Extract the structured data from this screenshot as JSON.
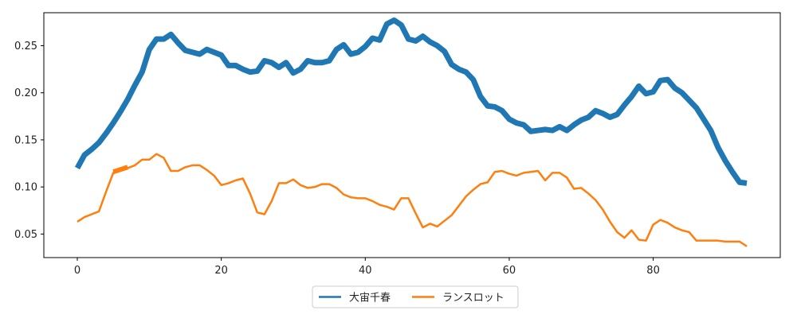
{
  "chart_data": {
    "type": "line",
    "title": "",
    "xlabel": "",
    "ylabel": "",
    "xlim": [
      -4.65,
      97.65
    ],
    "ylim": [
      0.025,
      0.285
    ],
    "xticks": [
      0,
      20,
      40,
      60,
      80
    ],
    "yticks": [
      0.05,
      0.1,
      0.15,
      0.2,
      0.25
    ],
    "ytick_labels": [
      "0.05",
      "0.10",
      "0.15",
      "0.20",
      "0.25"
    ],
    "grid": false,
    "legend": {
      "placement": "bottom-center",
      "columns": 2
    },
    "series": [
      {
        "name": "大宙千春",
        "color": "#1f77b4",
        "x": [
          0,
          1,
          2,
          3,
          4,
          5,
          6,
          7,
          8,
          9,
          10,
          11,
          12,
          13,
          14,
          15,
          16,
          17,
          18,
          19,
          20,
          21,
          22,
          23,
          24,
          25,
          26,
          27,
          28,
          29,
          30,
          31,
          32,
          33,
          34,
          35,
          36,
          37,
          38,
          39,
          40,
          41,
          42,
          43,
          44,
          45,
          46,
          47,
          48,
          49,
          50,
          51,
          52,
          53,
          54,
          55,
          56,
          57,
          58,
          59,
          60,
          61,
          62,
          63,
          64,
          65,
          66,
          67,
          68,
          69,
          70,
          71,
          72,
          73,
          74,
          75,
          76,
          77,
          78,
          79,
          80,
          81,
          82,
          83,
          84,
          85,
          86,
          87,
          88,
          89,
          90,
          91,
          92,
          93
        ],
        "values": [
          0.12,
          0.134,
          0.14,
          0.147,
          0.157,
          0.168,
          0.18,
          0.193,
          0.208,
          0.222,
          0.246,
          0.257,
          0.257,
          0.262,
          0.253,
          0.245,
          0.243,
          0.241,
          0.246,
          0.243,
          0.24,
          0.229,
          0.229,
          0.225,
          0.222,
          0.223,
          0.234,
          0.232,
          0.227,
          0.232,
          0.221,
          0.225,
          0.234,
          0.232,
          0.232,
          0.234,
          0.246,
          0.251,
          0.241,
          0.243,
          0.249,
          0.258,
          0.256,
          0.273,
          0.277,
          0.272,
          0.257,
          0.255,
          0.26,
          0.254,
          0.25,
          0.244,
          0.23,
          0.225,
          0.222,
          0.214,
          0.196,
          0.186,
          0.185,
          0.181,
          0.172,
          0.168,
          0.166,
          0.159,
          0.16,
          0.161,
          0.16,
          0.164,
          0.16,
          0.166,
          0.171,
          0.174,
          0.181,
          0.178,
          0.174,
          0.177,
          0.187,
          0.196,
          0.207,
          0.199,
          0.201,
          0.213,
          0.214,
          0.205,
          0.2,
          0.192,
          0.184,
          0.172,
          0.16,
          0.142,
          0.128,
          0.116,
          0.105,
          0.104
        ]
      },
      {
        "name": "ランスロット",
        "color": "#ff7f0e",
        "x": [
          0,
          1,
          2,
          3,
          4,
          5,
          6,
          7,
          8,
          9,
          10,
          11,
          12,
          13,
          14,
          15,
          16,
          17,
          18,
          19,
          20,
          21,
          22,
          23,
          24,
          25,
          26,
          27,
          28,
          29,
          30,
          31,
          32,
          33,
          34,
          35,
          36,
          37,
          38,
          39,
          40,
          41,
          42,
          43,
          44,
          45,
          46,
          47,
          48,
          49,
          50,
          51,
          52,
          53,
          54,
          55,
          56,
          57,
          58,
          59,
          60,
          61,
          62,
          63,
          64,
          65,
          66,
          67,
          68,
          69,
          70,
          71,
          72,
          73,
          74,
          75,
          76,
          77,
          78,
          79,
          80,
          81,
          82,
          83,
          84,
          85,
          86,
          87,
          88,
          89,
          90,
          91,
          92,
          93
        ],
        "values": [
          0.063,
          0.068,
          0.071,
          0.074,
          0.095,
          0.115,
          0.118,
          0.12,
          0.123,
          0.129,
          0.129,
          0.135,
          0.131,
          0.117,
          0.117,
          0.121,
          0.123,
          0.123,
          0.118,
          0.112,
          0.102,
          0.104,
          0.107,
          0.109,
          0.093,
          0.073,
          0.071,
          0.085,
          0.104,
          0.104,
          0.108,
          0.102,
          0.099,
          0.1,
          0.103,
          0.103,
          0.099,
          0.092,
          0.089,
          0.088,
          0.088,
          0.085,
          0.081,
          0.079,
          0.076,
          0.088,
          0.088,
          0.072,
          0.057,
          0.061,
          0.058,
          0.064,
          0.07,
          0.08,
          0.09,
          0.097,
          0.103,
          0.105,
          0.116,
          0.117,
          0.114,
          0.112,
          0.115,
          0.116,
          0.117,
          0.107,
          0.115,
          0.115,
          0.11,
          0.098,
          0.099,
          0.093,
          0.086,
          0.076,
          0.063,
          0.052,
          0.046,
          0.054,
          0.044,
          0.043,
          0.06,
          0.065,
          0.062,
          0.057,
          0.054,
          0.052,
          0.043,
          0.043,
          0.043,
          0.043,
          0.042,
          0.042,
          0.042,
          0.037
        ]
      },
      {
        "name": "",
        "color": "#ff7f0e",
        "x": [
          5,
          7
        ],
        "values": [
          0.116,
          0.121
        ]
      }
    ]
  }
}
